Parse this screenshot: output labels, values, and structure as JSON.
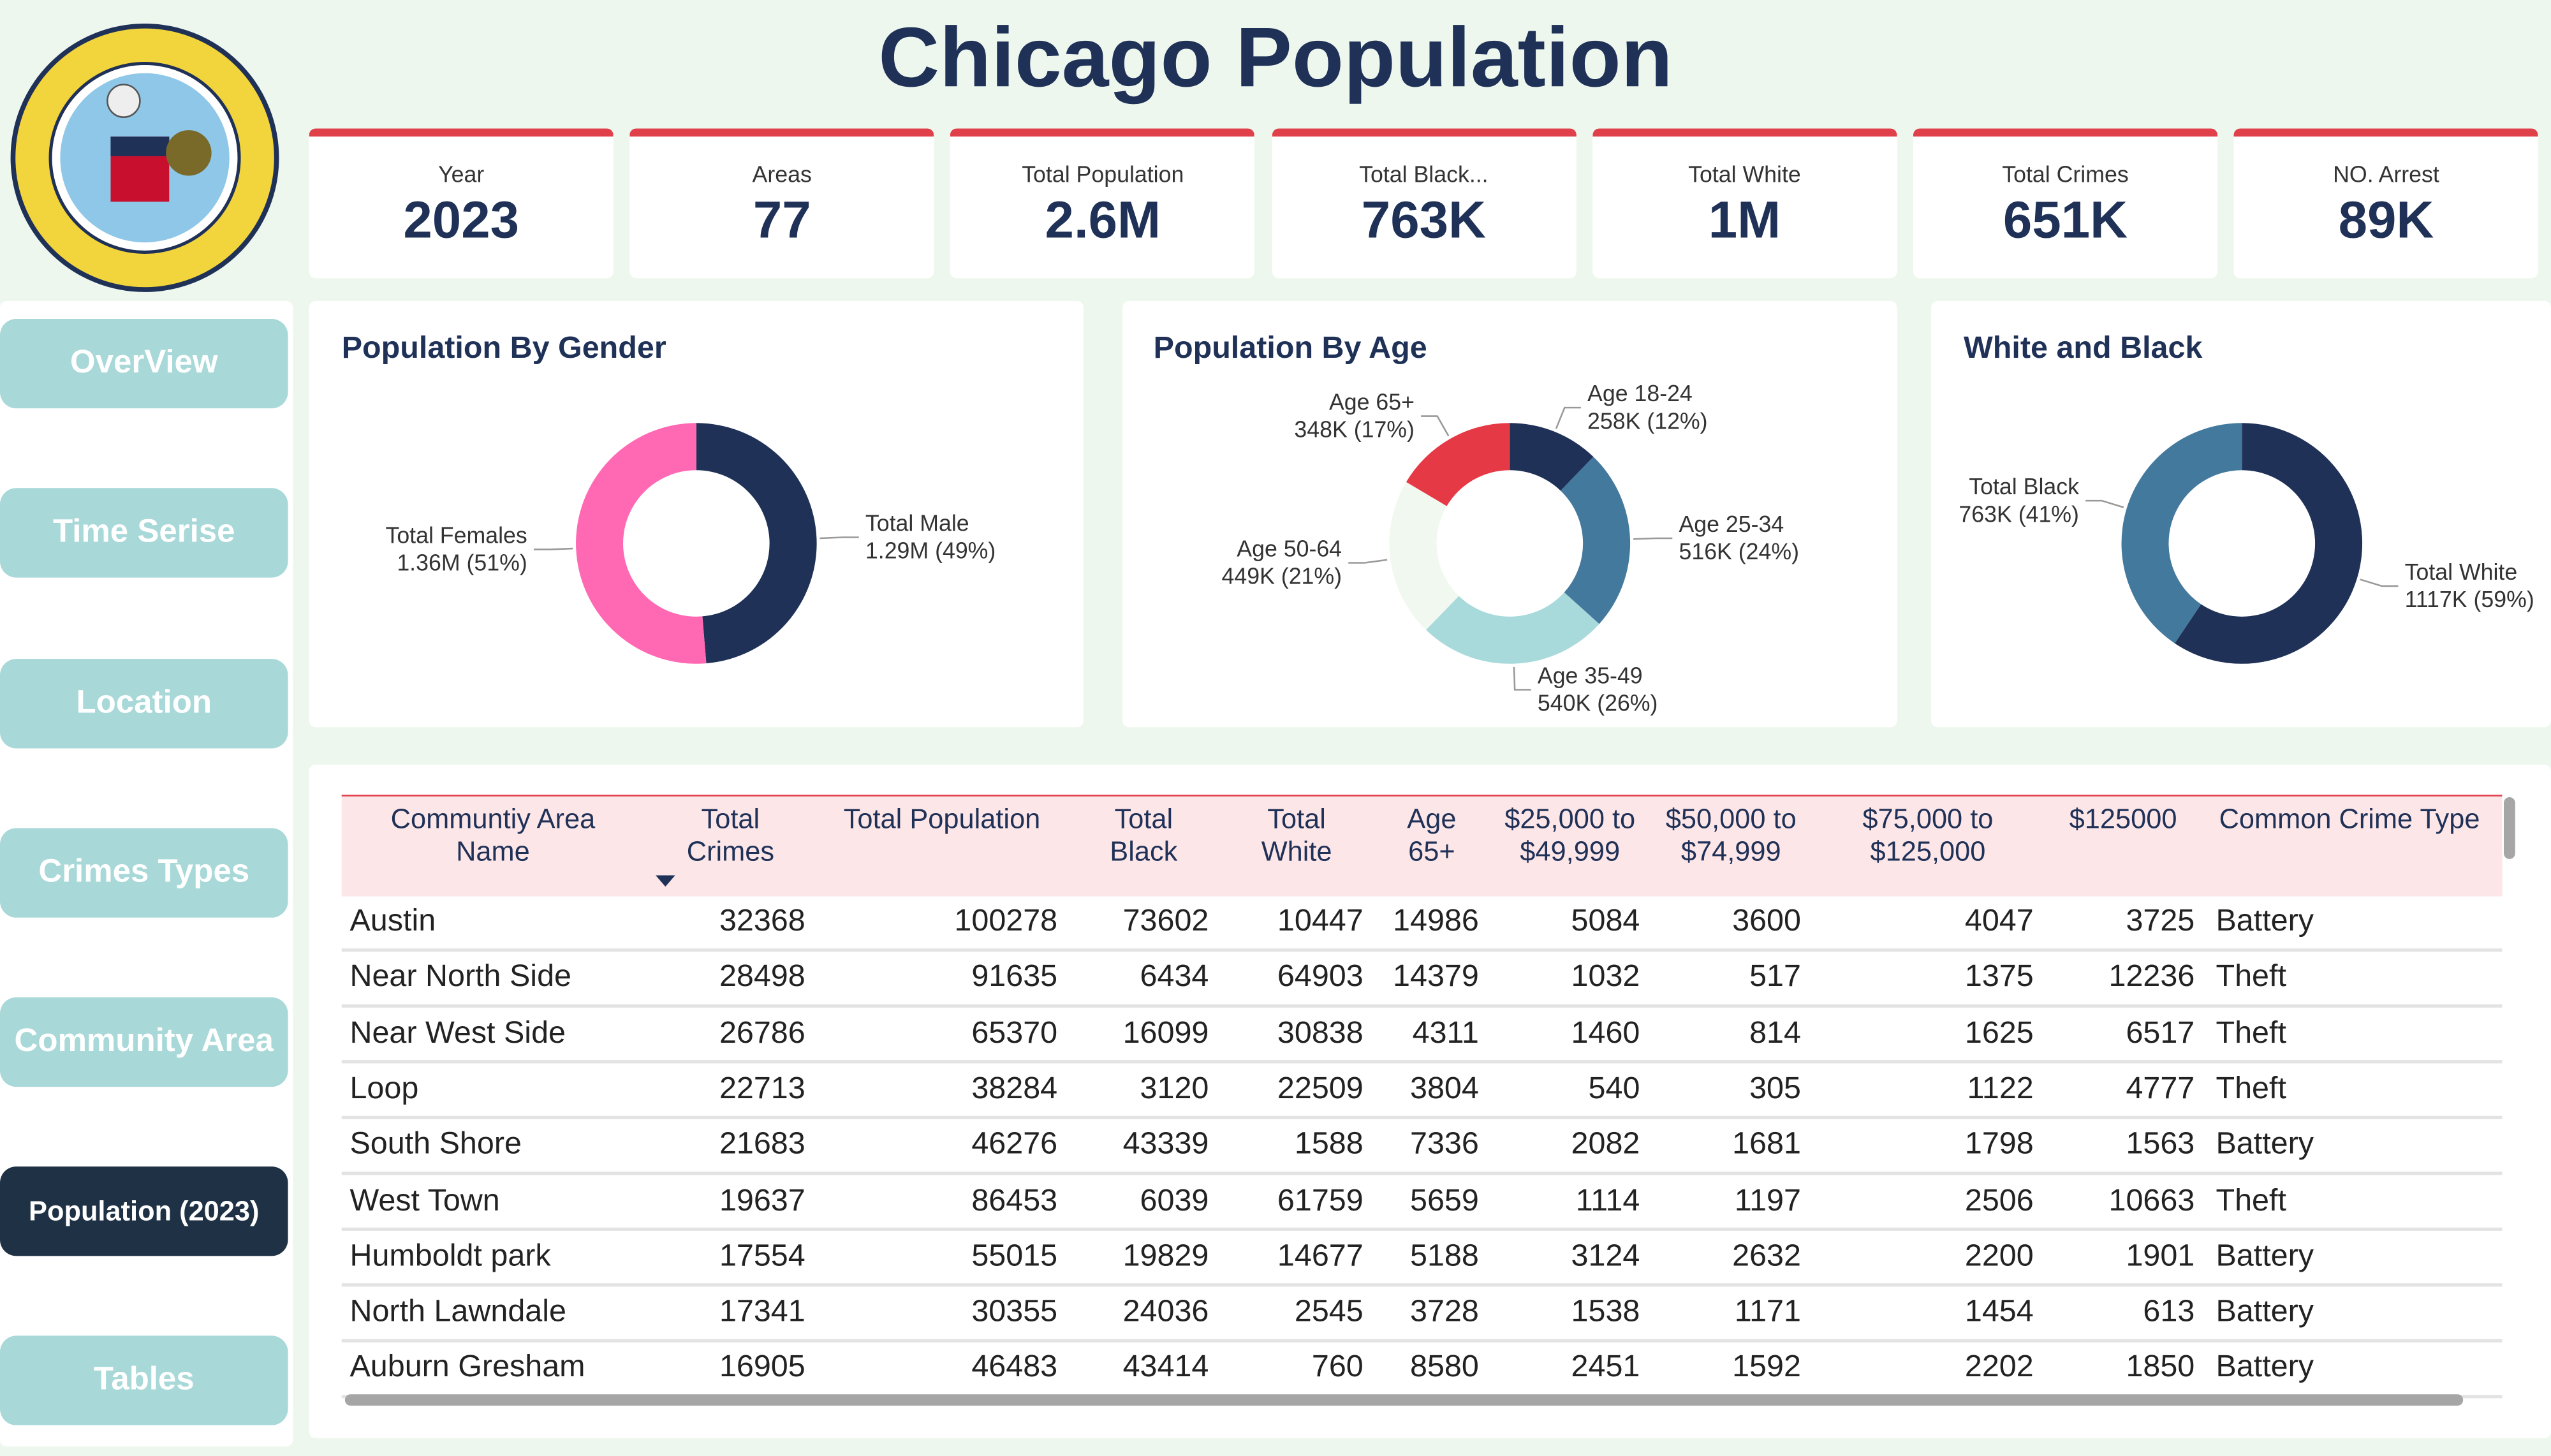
{
  "title": "Chicago Population",
  "cards": [
    {
      "label": "Year",
      "value": 2023
    },
    {
      "label": "Areas",
      "value": 77
    },
    {
      "label": "Total Population",
      "value": "2.6M"
    },
    {
      "label": "Total Black...",
      "value": "763K"
    },
    {
      "label": "Total White",
      "value": "1M"
    },
    {
      "label": "Total Crimes",
      "value": "651K"
    },
    {
      "label": "NO. Arrest",
      "value": "89K"
    }
  ],
  "nav": [
    "OverView",
    "Time Serise",
    "Location",
    "Crimes Types",
    "Community Area",
    "Population (2023)",
    "Tables"
  ],
  "chart_data": [
    {
      "type": "donut",
      "title": "Population By Gender",
      "categories": [
        "Total Male",
        "Total Females"
      ],
      "values": [
        1290000,
        1360000
      ],
      "value_labels": [
        "1.29M (49%)",
        "1.36M (51%)"
      ],
      "colors": [
        "#1f3157",
        "#ff69b4"
      ]
    },
    {
      "type": "donut",
      "title": "Population By Age",
      "categories": [
        "Age 18-24",
        "Age 25-34",
        "Age 35-49",
        "Age 50-64",
        "Age 65+"
      ],
      "values": [
        258000,
        516000,
        540000,
        449000,
        348000
      ],
      "value_labels": [
        "258K (12%)",
        "516K (24%)",
        "540K (26%)",
        "449K (21%)",
        "348K (17%)"
      ],
      "colors": [
        "#1f3157",
        "#44799e",
        "#a8dadc",
        "#f1f8ef",
        "#e63946"
      ]
    },
    {
      "type": "donut",
      "title": "White and Black",
      "categories": [
        "Total White",
        "Total Black"
      ],
      "values": [
        1117000,
        763000
      ],
      "value_labels": [
        "1117K (59%)",
        "763K (41%)"
      ],
      "colors": [
        "#1f3157",
        "#44799e"
      ]
    }
  ],
  "table": {
    "header": [
      "Communtiy Area Name",
      "Total Crimes",
      "Total Population",
      "Total Black",
      "Total White",
      "Age 65+",
      "$25,000 to $49,999",
      "$50,000 to $74,999",
      "$75,000 to $125,000",
      "$125000",
      "Common Crime Type"
    ],
    "rows": [
      [
        "Austin",
        32368,
        100278,
        73602,
        10447,
        14986,
        5084,
        3600,
        4047,
        3725,
        "Battery"
      ],
      [
        "Near North Side",
        28498,
        91635,
        6434,
        64903,
        14379,
        1032,
        517,
        1375,
        12236,
        "Theft"
      ],
      [
        "Near West Side",
        26786,
        65370,
        16099,
        30838,
        4311,
        1460,
        814,
        1625,
        6517,
        "Theft"
      ],
      [
        "Loop",
        22713,
        38284,
        3120,
        22509,
        3804,
        540,
        305,
        1122,
        4777,
        "Theft"
      ],
      [
        "South Shore",
        21683,
        46276,
        43339,
        1588,
        7336,
        2082,
        1681,
        1798,
        1563,
        "Battery"
      ],
      [
        "West Town",
        19637,
        86453,
        6039,
        61759,
        5659,
        1114,
        1197,
        2506,
        10663,
        "Theft"
      ],
      [
        "Humboldt park",
        17554,
        55015,
        19829,
        14677,
        5188,
        3124,
        2632,
        2200,
        1901,
        "Battery"
      ],
      [
        "North Lawndale",
        17341,
        30355,
        24036,
        2545,
        3728,
        1538,
        1171,
        1454,
        613,
        "Battery"
      ],
      [
        "Auburn Gresham",
        16905,
        46483,
        43414,
        760,
        8580,
        2451,
        1592,
        2202,
        1850,
        "Battery"
      ]
    ]
  }
}
